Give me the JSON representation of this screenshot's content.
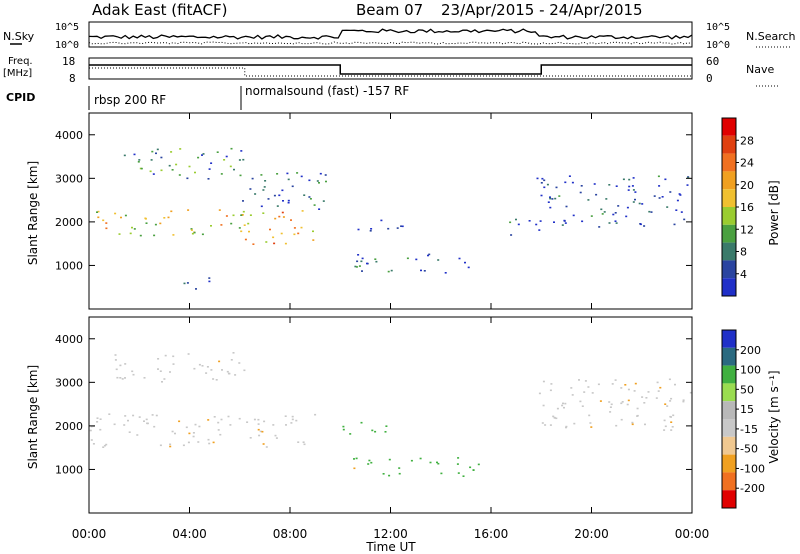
{
  "header": {
    "station": "Adak East (fitACF)",
    "beam": "Beam 07",
    "date_range": "23/Apr/2015 - 24/Apr/2015"
  },
  "strips": {
    "nsky_label": "N.Sky",
    "nsky_ticks": [
      "10^5",
      "10^0"
    ],
    "nsearch_label": "N.Search",
    "freq_label_1": "Freq.",
    "freq_label_2": "[MHz]",
    "freq_ticks": [
      "18",
      "8"
    ],
    "nave_ticks": [
      "60",
      "0"
    ],
    "nave_label": "Nave",
    "cpid_label": "CPID",
    "cpid_modes": [
      "rbsp 200 RF",
      "normalsound (fast) -157 RF"
    ]
  },
  "colors": {
    "power": [
      "#2030c8",
      "#2a44a0",
      "#3a7a6a",
      "#4aa040",
      "#9acc30",
      "#f0c030",
      "#f0a020",
      "#f07020",
      "#e04010",
      "#e00000"
    ],
    "velocity": [
      "#e00000",
      "#f07020",
      "#f0a020",
      "#f0c890",
      "#c8c8c8",
      "#b8b8b8",
      "#9adc50",
      "#40b040",
      "#2a6a80",
      "#2030c8"
    ]
  },
  "chart_data": [
    {
      "type": "heatmap",
      "name": "power",
      "ylabel": "Slant Range [km]",
      "cbar_label": "Power [dB]",
      "cbar_ticks": [
        "28",
        "24",
        "20",
        "16",
        "12",
        "8",
        "4"
      ],
      "ylim": [
        0,
        4500
      ],
      "yticks": [
        "4000",
        "3000",
        "2000",
        "1000"
      ],
      "ytick_values": [
        4000,
        3000,
        2000,
        1000
      ],
      "features": [
        {
          "t0": 0.0,
          "t1": 6.2,
          "r0": 1700,
          "r1": 2300,
          "level": 0.55
        },
        {
          "t0": 6.0,
          "t1": 9.0,
          "r0": 1500,
          "r1": 2300,
          "level": 0.6
        },
        {
          "t0": 1.0,
          "t1": 6.2,
          "r0": 3000,
          "r1": 3700,
          "level": 0.25
        },
        {
          "t0": 6.0,
          "t1": 9.5,
          "r0": 2300,
          "r1": 3200,
          "level": 0.2
        },
        {
          "t0": 10.5,
          "t1": 15.5,
          "r0": 850,
          "r1": 1300,
          "level": 0.15
        },
        {
          "t0": 10.0,
          "t1": 12.5,
          "r0": 1800,
          "r1": 2100,
          "level": 0.1
        },
        {
          "t0": 16.5,
          "t1": 18.0,
          "r0": 1700,
          "r1": 2100,
          "level": 0.15
        },
        {
          "t0": 17.8,
          "t1": 24.0,
          "r0": 1900,
          "r1": 3100,
          "level": 0.1
        },
        {
          "t0": 3.5,
          "t1": 4.8,
          "r0": 450,
          "r1": 800,
          "level": 0.15
        }
      ]
    },
    {
      "type": "heatmap",
      "name": "velocity",
      "ylabel": "Slant Range [km]",
      "cbar_label": "Velocity [m s⁻¹]",
      "cbar_ticks": [
        "200",
        "100",
        "50",
        "15",
        "-15",
        "-50",
        "-100",
        "-200"
      ],
      "ylim": [
        0,
        4500
      ],
      "yticks": [
        "4000",
        "3000",
        "2000",
        "1000"
      ],
      "ytick_values": [
        4000,
        3000,
        2000,
        1000
      ],
      "xlabel": "Time UT",
      "xticks": [
        "00:00",
        "04:00",
        "08:00",
        "12:00",
        "16:00",
        "20:00",
        "00:00"
      ],
      "xlim_hours": [
        0,
        24
      ],
      "features": [
        {
          "t0": 0.0,
          "t1": 9.0,
          "r0": 1500,
          "r1": 2300,
          "velocity": -5
        },
        {
          "t0": 1.0,
          "t1": 6.2,
          "r0": 3000,
          "r1": 3700,
          "velocity": -5
        },
        {
          "t0": 10.5,
          "t1": 15.5,
          "r0": 850,
          "r1": 1300,
          "velocity": 25
        },
        {
          "t0": 10.0,
          "t1": 12.5,
          "r0": 1800,
          "r1": 2100,
          "velocity": 40
        },
        {
          "t0": 17.8,
          "t1": 24.0,
          "r0": 1900,
          "r1": 3100,
          "velocity": -5
        }
      ]
    }
  ]
}
